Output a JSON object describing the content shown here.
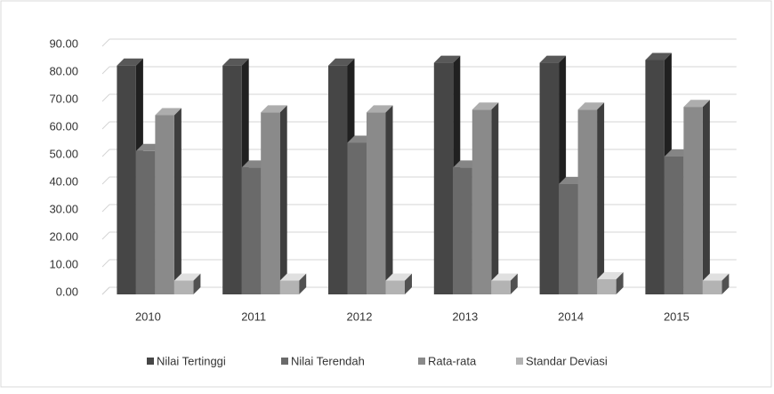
{
  "chart_data": {
    "type": "bar3d",
    "categories": [
      "2010",
      "2011",
      "2012",
      "2013",
      "2014",
      "2015"
    ],
    "series": [
      {
        "name": "Nilai Tertinggi",
        "color": "#464646",
        "values": [
          83,
          83,
          83,
          84,
          84,
          85
        ]
      },
      {
        "name": "Nilai Terendah",
        "color": "#6a6a6a",
        "values": [
          52,
          46,
          55,
          46,
          40,
          50
        ]
      },
      {
        "name": "Rata-rata",
        "color": "#8a8a8a",
        "values": [
          65,
          66,
          66,
          67,
          67,
          68
        ]
      },
      {
        "name": "Standar Deviasi",
        "color": "#b3b3b3",
        "values": [
          5,
          5,
          5,
          5,
          5.5,
          5
        ]
      }
    ],
    "ylim": [
      0,
      90
    ],
    "yticks": [
      {
        "value": 0,
        "label": "0.00"
      },
      {
        "value": 10,
        "label": "10.00"
      },
      {
        "value": 20,
        "label": "20.00"
      },
      {
        "value": 30,
        "label": "30.00"
      },
      {
        "value": 40,
        "label": "40.00"
      },
      {
        "value": 50,
        "label": "50.00"
      },
      {
        "value": 60,
        "label": "60.00"
      },
      {
        "value": 70,
        "label": "70.00"
      },
      {
        "value": 80,
        "label": "80.00"
      },
      {
        "value": 90,
        "label": "90.00"
      }
    ],
    "grid": true,
    "legend": "bottom"
  }
}
